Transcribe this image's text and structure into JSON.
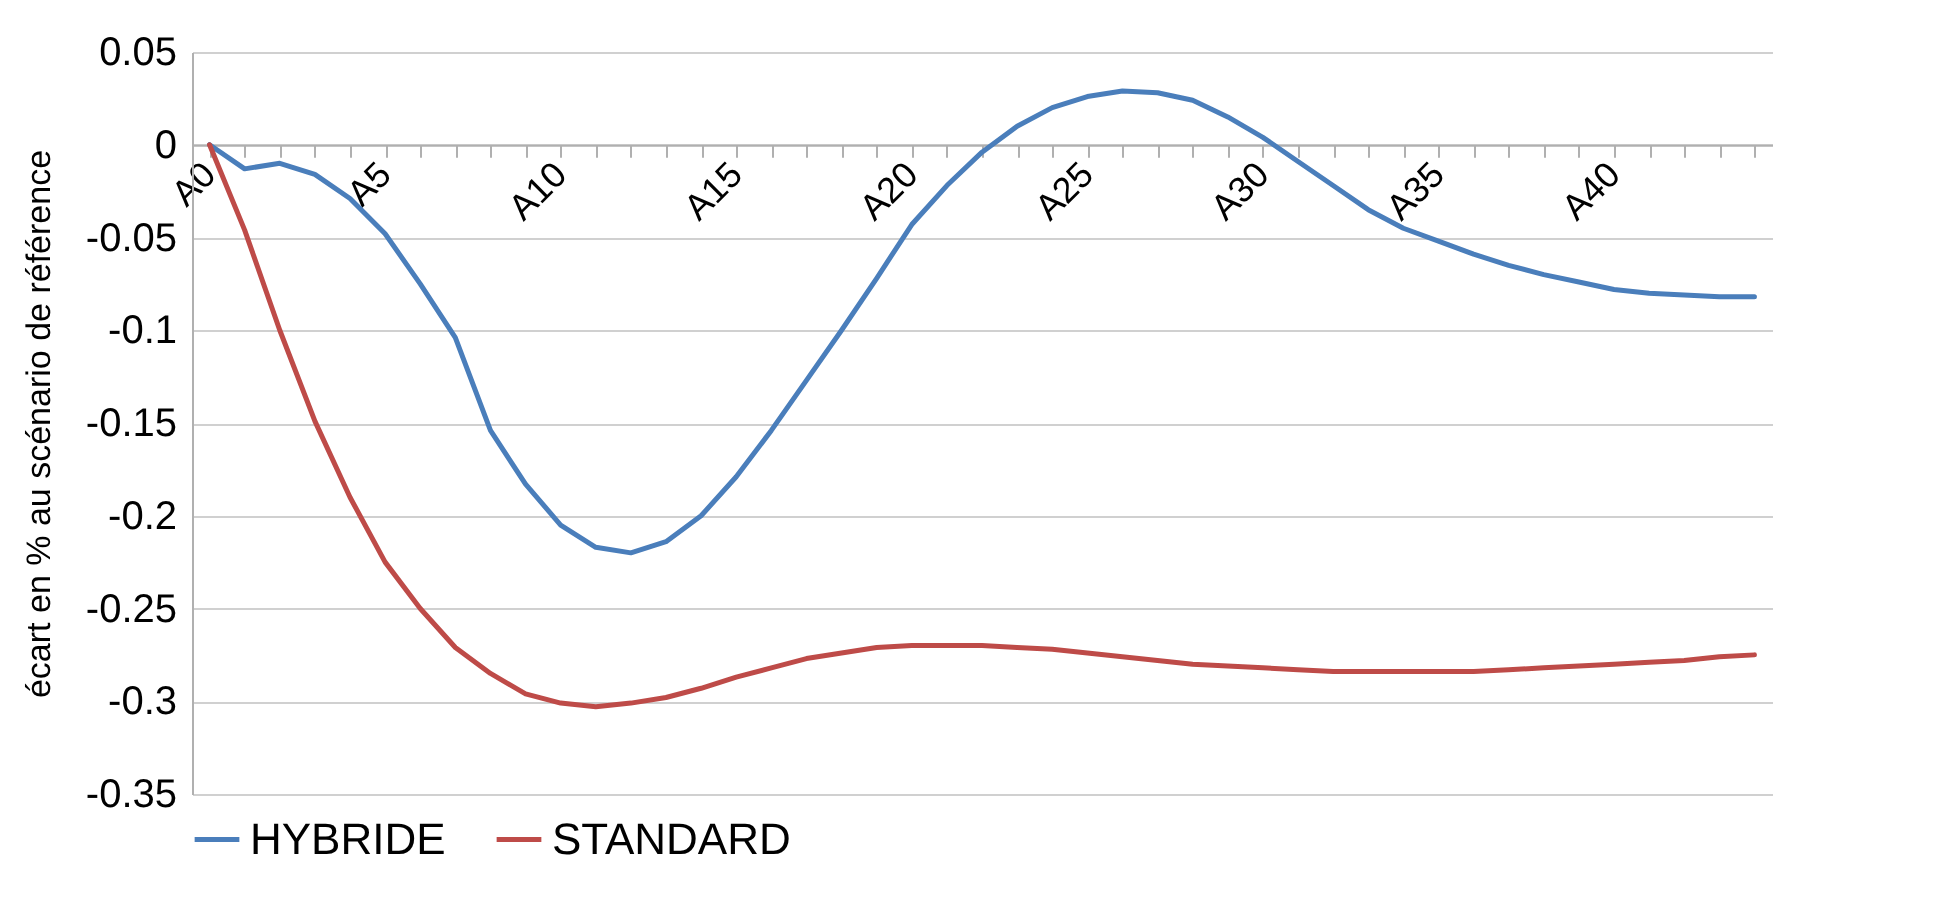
{
  "chart_data": {
    "type": "line",
    "ylabel": "écart en % au scénario de référence",
    "categories": [
      "A0",
      null,
      null,
      null,
      null,
      "A5",
      null,
      null,
      null,
      null,
      "A10",
      null,
      null,
      null,
      null,
      "A15",
      null,
      null,
      null,
      null,
      "A20",
      null,
      null,
      null,
      null,
      "A25",
      null,
      null,
      null,
      null,
      "A30",
      null,
      null,
      null,
      null,
      "A35",
      null,
      null,
      null,
      null,
      "A40",
      null,
      null,
      null,
      null
    ],
    "series": [
      {
        "name": "HYBRIDE",
        "color": "#4a7ebb",
        "values": [
          0,
          -0.013,
          -0.01,
          -0.016,
          -0.029,
          -0.048,
          -0.075,
          -0.104,
          -0.154,
          -0.183,
          -0.205,
          -0.217,
          -0.22,
          -0.214,
          -0.2,
          -0.179,
          -0.154,
          -0.127,
          -0.1,
          -0.072,
          -0.043,
          -0.022,
          -0.004,
          0.01,
          0.02,
          0.026,
          0.029,
          0.028,
          0.024,
          0.015,
          0.004,
          -0.009,
          -0.022,
          -0.035,
          -0.045,
          -0.052,
          -0.059,
          -0.065,
          -0.07,
          -0.074,
          -0.078,
          -0.08,
          -0.081,
          -0.082,
          -0.082
        ]
      },
      {
        "name": "STANDARD",
        "color": "#be4b48",
        "values": [
          0,
          -0.046,
          -0.1,
          -0.149,
          -0.19,
          -0.225,
          -0.25,
          -0.271,
          -0.285,
          -0.296,
          -0.301,
          -0.303,
          -0.301,
          -0.298,
          -0.293,
          -0.287,
          -0.282,
          -0.277,
          -0.274,
          -0.271,
          -0.27,
          -0.27,
          -0.27,
          -0.271,
          -0.272,
          -0.274,
          -0.276,
          -0.278,
          -0.28,
          -0.281,
          -0.282,
          -0.283,
          -0.284,
          -0.284,
          -0.284,
          -0.284,
          -0.284,
          -0.283,
          -0.282,
          -0.281,
          -0.28,
          -0.279,
          -0.278,
          -0.276,
          -0.275
        ]
      }
    ],
    "ylim": [
      -0.35,
      0.05
    ],
    "yticks": [
      0.05,
      0,
      -0.05,
      -0.1,
      -0.15,
      -0.2,
      -0.25,
      -0.3,
      -0.35
    ],
    "grid": "y",
    "legend": "bottom",
    "line_style": "solid"
  }
}
